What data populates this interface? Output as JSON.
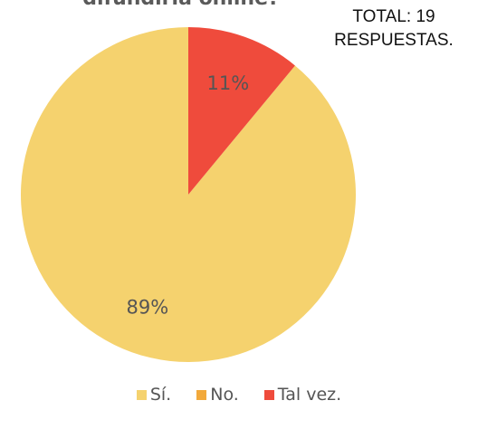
{
  "chart_data": {
    "type": "pie",
    "title": "difundirla online?",
    "note_lines": [
      "TOTAL: 19",
      "RESPUESTAS."
    ],
    "slices": [
      {
        "label": "Sí.",
        "value": 89,
        "display": "89%",
        "color": "#f5d26e"
      },
      {
        "label": "No.",
        "value": 0,
        "display": "",
        "color": "#f2a93b"
      },
      {
        "label": "Tal vez.",
        "value": 11,
        "display": "11%",
        "color": "#ef4b3c"
      }
    ],
    "start": "top",
    "direction": "counterclockwise",
    "legend_position": "bottom"
  }
}
